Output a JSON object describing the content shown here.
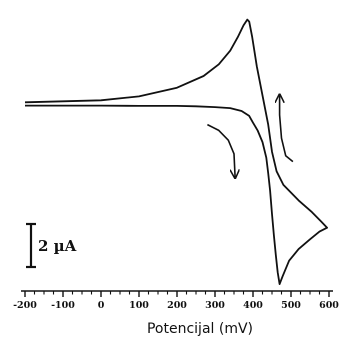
{
  "chart_data": {
    "type": "line",
    "title": "",
    "xlabel": "Potencijal (mV)",
    "ylabel": "",
    "xlim": [
      -200,
      600
    ],
    "ylim": [
      -9.2,
      5.2
    ],
    "x_ticks": [
      -200,
      -100,
      0,
      100,
      200,
      300,
      400,
      500,
      600
    ],
    "x_tick_labels": [
      "-200",
      "-100",
      "0",
      "100",
      "200",
      "300",
      "400",
      "500",
      "600"
    ],
    "grid": false,
    "scale_bar": {
      "label": "2 µA",
      "value_uA": 2
    },
    "series": [
      {
        "name": "",
        "color": "#111111",
        "points": [
          [
            -200,
            0.25
          ],
          [
            -100,
            0.3
          ],
          [
            0,
            0.35
          ],
          [
            100,
            0.55
          ],
          [
            200,
            1.0
          ],
          [
            270,
            1.6
          ],
          [
            310,
            2.2
          ],
          [
            340,
            2.9
          ],
          [
            360,
            3.6
          ],
          [
            375,
            4.2
          ],
          [
            385,
            4.5
          ],
          [
            390,
            4.4
          ],
          [
            398,
            3.6
          ],
          [
            410,
            2.1
          ],
          [
            425,
            0.6
          ],
          [
            440,
            -0.9
          ],
          [
            450,
            -2.3
          ],
          [
            462,
            -3.3
          ],
          [
            480,
            -4.0
          ],
          [
            520,
            -4.8
          ],
          [
            555,
            -5.4
          ],
          [
            580,
            -5.9
          ],
          [
            595,
            -6.2
          ],
          [
            575,
            -6.4
          ],
          [
            550,
            -6.8
          ],
          [
            520,
            -7.3
          ],
          [
            495,
            -7.9
          ],
          [
            478,
            -8.7
          ],
          [
            470,
            -9.1
          ],
          [
            465,
            -8.5
          ],
          [
            460,
            -7.6
          ],
          [
            455,
            -6.6
          ],
          [
            450,
            -5.5
          ],
          [
            445,
            -4.3
          ],
          [
            440,
            -3.4
          ],
          [
            435,
            -2.6
          ],
          [
            425,
            -1.8
          ],
          [
            412,
            -1.2
          ],
          [
            400,
            -0.8
          ],
          [
            390,
            -0.45
          ],
          [
            370,
            -0.2
          ],
          [
            340,
            -0.05
          ],
          [
            300,
            0.0
          ],
          [
            250,
            0.04
          ],
          [
            200,
            0.06
          ],
          [
            100,
            0.06
          ],
          [
            0,
            0.08
          ],
          [
            -100,
            0.08
          ],
          [
            -200,
            0.08
          ]
        ]
      }
    ],
    "arrows": [
      {
        "points": [
          [
            280,
            -0.9
          ],
          [
            310,
            -1.2
          ],
          [
            335,
            -1.7
          ],
          [
            350,
            -2.4
          ],
          [
            353,
            -3.6
          ]
        ],
        "direction": "reduction sweep"
      },
      {
        "points": [
          [
            505,
            -2.8
          ],
          [
            486,
            -2.5
          ],
          [
            475,
            -1.6
          ],
          [
            470,
            -0.4
          ],
          [
            470,
            0.6
          ]
        ],
        "direction": "oxidation sweep"
      }
    ]
  }
}
